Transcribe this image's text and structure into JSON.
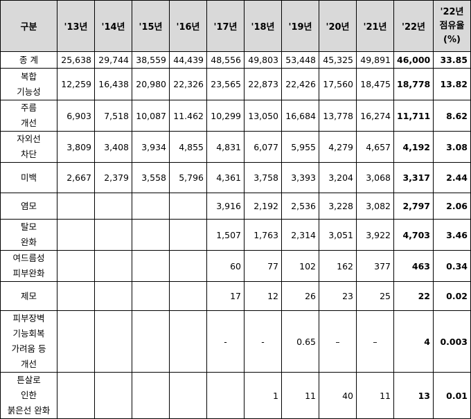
{
  "table": {
    "headers": [
      "구분",
      "'13년",
      "'14년",
      "'15년",
      "'16년",
      "'17년",
      "'18년",
      "'19년",
      "'20년",
      "'21년",
      "'22년",
      "'22년\n점유율\n(%)"
    ],
    "header_last_lines": [
      "'22년",
      "점유율",
      "(%)"
    ],
    "rows": [
      {
        "label": "종  계",
        "cells": [
          "25,638",
          "29,744",
          "38,559",
          "44,439",
          "48,556",
          "49,803",
          "53,448",
          "45,325",
          "49,891",
          "46,000",
          "33.85"
        ]
      },
      {
        "label": "복합\n기능성",
        "cells": [
          "12,259",
          "16,438",
          "20,980",
          "22,326",
          "23,565",
          "22,873",
          "22,426",
          "17,560",
          "18,475",
          "18,778",
          "13.82"
        ]
      },
      {
        "label": "주름\n개선",
        "cells": [
          "6,903",
          "7,518",
          "10,087",
          "11.462",
          "10,299",
          "13,050",
          "16,684",
          "13,778",
          "16,274",
          "11,711",
          "8.62"
        ]
      },
      {
        "label": "자외선\n차단",
        "cells": [
          "3,809",
          "3,408",
          "3,934",
          "4,855",
          "4,831",
          "6,077",
          "5,955",
          "4,279",
          "4,657",
          "4,192",
          "3.08"
        ]
      },
      {
        "label": "미백",
        "cells": [
          "2,667",
          "2,379",
          "3,558",
          "5,796",
          "4,361",
          "3,758",
          "3,393",
          "3,204",
          "3,068",
          "3,317",
          "2.44"
        ]
      },
      {
        "label": "염모",
        "cells": [
          "",
          "",
          "",
          "",
          "3,916",
          "2,192",
          "2,536",
          "3,228",
          "3,082",
          "2,797",
          "2.06"
        ]
      },
      {
        "label": "탈모\n완화",
        "cells": [
          "",
          "",
          "",
          "",
          "1,507",
          "1,763",
          "2,314",
          "3,051",
          "3,922",
          "4,703",
          "3.46"
        ]
      },
      {
        "label": "여드름성\n피부완화",
        "cells": [
          "",
          "",
          "",
          "",
          "60",
          "77",
          "102",
          "162",
          "377",
          "463",
          "0.34"
        ]
      },
      {
        "label": "제모",
        "cells": [
          "",
          "",
          "",
          "",
          "17",
          "12",
          "26",
          "23",
          "25",
          "22",
          "0.02"
        ]
      },
      {
        "label": "피부장벽\n기능회복\n가려움 등\n개선",
        "cells": [
          "",
          "",
          "",
          "",
          "-",
          "-",
          "0.65",
          "–",
          "–",
          "4",
          "0.003"
        ]
      },
      {
        "label": "튼살로\n인한\n붉은선 완화",
        "cells": [
          "",
          "",
          "",
          "",
          "",
          "1",
          "11",
          "40",
          "11",
          "13",
          "0.01"
        ]
      }
    ]
  }
}
